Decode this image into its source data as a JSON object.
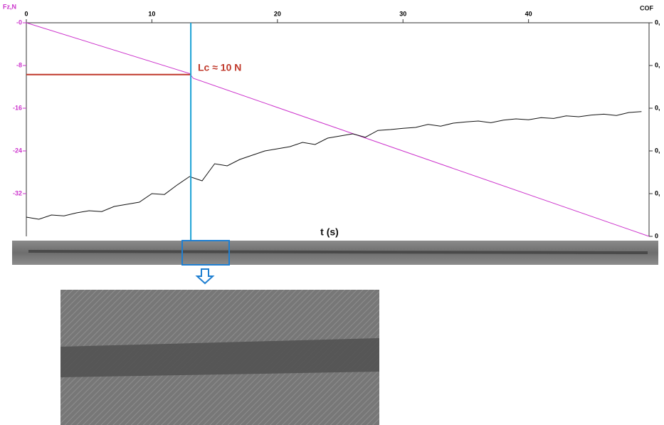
{
  "chart_data": {
    "type": "line",
    "x_label": "t (s)",
    "y_label": "Fz,N",
    "y2_label": "COF",
    "xlim": [
      0,
      49.6
    ],
    "xticks": [
      0,
      10,
      20,
      30,
      40
    ],
    "ylim": [
      -40,
      0
    ],
    "yticks": [
      {
        "value": 0,
        "label": "-0"
      },
      -8,
      -16,
      -24,
      -32
    ],
    "y2lim": [
      0,
      0.5
    ],
    "y2ticks": [
      {
        "value": 0.5,
        "label": "0,"
      },
      {
        "value": 0.4,
        "label": "0,"
      },
      {
        "value": 0.3,
        "label": "0,"
      },
      {
        "value": 0.2,
        "label": "0,"
      },
      {
        "value": 0.1,
        "label": "0,"
      },
      0
    ],
    "series": [
      {
        "name": "Fz",
        "color": "#cc33cc",
        "x": [
          0,
          13,
          13.3,
          49.6
        ],
        "values": [
          0,
          -9.5,
          -10.4,
          -40
        ]
      },
      {
        "name": "COF",
        "color": "#111111",
        "axis": "y2",
        "x": [
          0,
          1,
          2,
          3,
          4,
          5,
          6,
          7,
          8,
          9,
          10,
          11,
          12,
          13,
          14,
          15,
          16,
          17,
          18,
          19,
          20,
          21,
          22,
          23,
          24,
          25,
          26,
          27,
          28,
          29,
          30,
          31,
          32,
          33,
          34,
          35,
          36,
          37,
          38,
          39,
          40,
          41,
          42,
          43,
          44,
          45,
          46,
          47,
          48,
          49
        ],
        "values": [
          0.045,
          0.04,
          0.05,
          0.048,
          0.055,
          0.06,
          0.058,
          0.07,
          0.075,
          0.08,
          0.1,
          0.098,
          0.12,
          0.14,
          0.13,
          0.17,
          0.165,
          0.18,
          0.19,
          0.2,
          0.205,
          0.21,
          0.22,
          0.215,
          0.23,
          0.235,
          0.24,
          0.232,
          0.248,
          0.25,
          0.253,
          0.255,
          0.262,
          0.258,
          0.265,
          0.268,
          0.27,
          0.266,
          0.272,
          0.275,
          0.273,
          0.278,
          0.276,
          0.282,
          0.28,
          0.284,
          0.286,
          0.283,
          0.29,
          0.292
        ]
      }
    ],
    "critical_load": {
      "label": "Lc ≈ 10 N",
      "t": 13.1,
      "fz": -9.7,
      "line_color": "#c0392b",
      "marker_color": "#1fa3d6"
    }
  }
}
